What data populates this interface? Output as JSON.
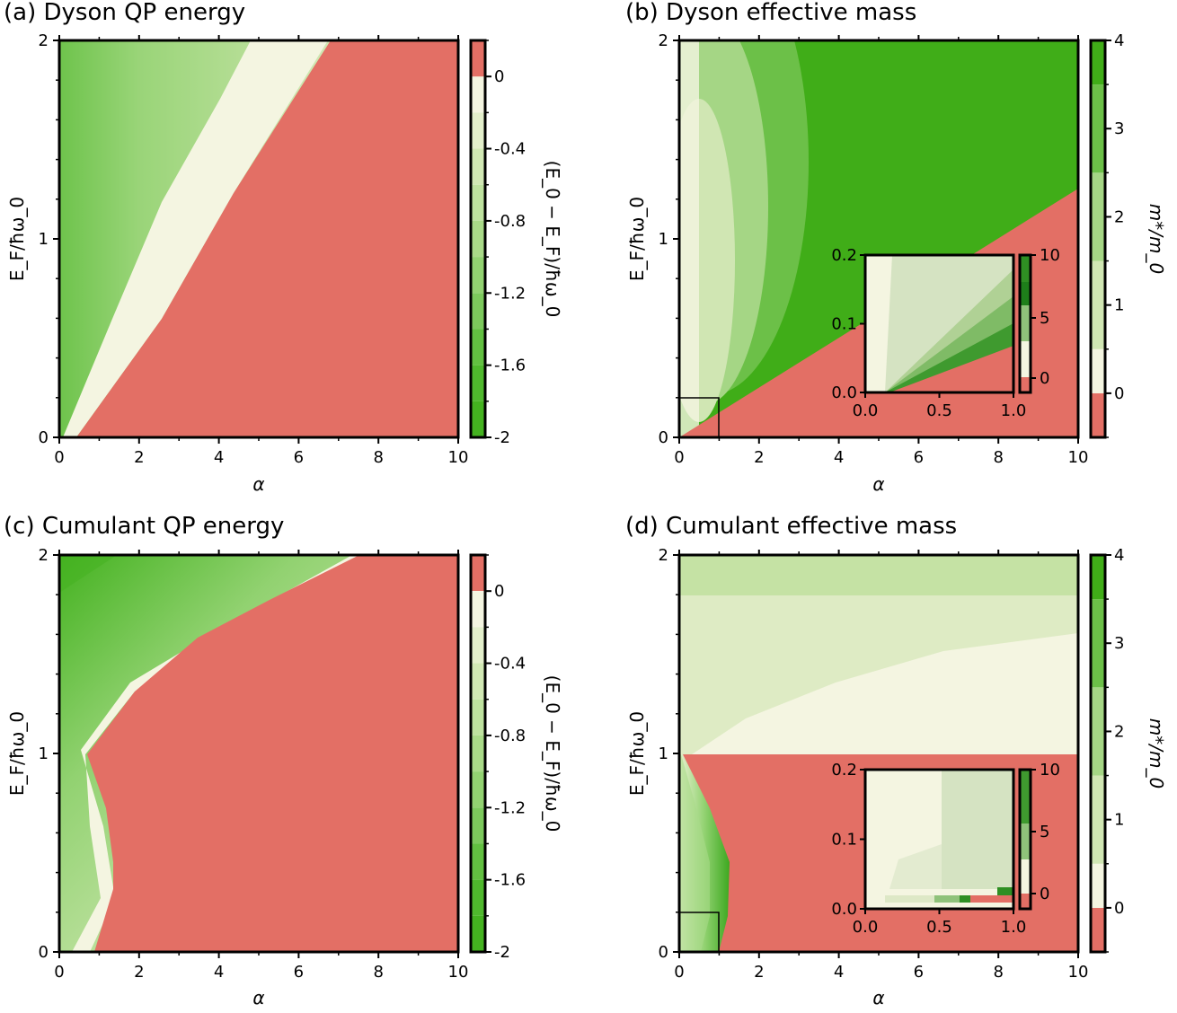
{
  "chart_data": [
    {
      "id": "a",
      "type": "heatmap",
      "title": "(a) Dyson QP energy",
      "xlabel": "α",
      "ylabel": "E_F/ħω_0",
      "xlim": [
        0,
        10
      ],
      "ylim": [
        0,
        2
      ],
      "x_ticks": [
        "0",
        "2",
        "4",
        "6",
        "8",
        "10"
      ],
      "y_ticks": [
        "0",
        "1",
        "2"
      ],
      "colorbar": {
        "label": "(E_0 − E_F)/ħω_0",
        "ticks": [
          "0",
          "-0.4",
          "-0.8",
          "-1.2",
          "-1.6",
          "-2"
        ],
        "range": [
          -2,
          0.2
        ],
        "positive_color": "#e36f65",
        "levels_from_zero": [
          "#f4f5e1",
          "#e3efcb",
          "#d1e8b4",
          "#bee29f",
          "#a9da88",
          "#92d271",
          "#7cc95c",
          "#62c041",
          "#4fb82d",
          "#44b220"
        ]
      },
      "regions": [
        {
          "name": "positive (red) region boundary, α at E_F/ħω_0",
          "E_F": [
            0,
            0.5,
            1.0,
            1.5,
            2.0
          ],
          "alpha": [
            0.3,
            2.3,
            3.9,
            5.4,
            6.8
          ]
        },
        {
          "name": "zero contour (pale band edge)",
          "E_F": [
            0,
            0.5,
            1.0,
            1.5,
            2.0
          ],
          "alpha": [
            0.1,
            1.4,
            2.5,
            3.6,
            4.8
          ]
        }
      ]
    },
    {
      "id": "b",
      "type": "heatmap",
      "title": "(b) Dyson effective mass",
      "xlabel": "α",
      "ylabel": "E_F/ħω_0",
      "xlim": [
        0,
        10
      ],
      "ylim": [
        0,
        2
      ],
      "x_ticks": [
        "0",
        "2",
        "4",
        "6",
        "8",
        "10"
      ],
      "y_ticks": [
        "0",
        "1",
        "2"
      ],
      "colorbar": {
        "label": "m*/m_0",
        "ticks": [
          "0",
          "1",
          "2",
          "3",
          "4"
        ],
        "range": [
          -0.5,
          4
        ],
        "negative_color": "#e36f65",
        "levels_from_zero": [
          "#f4f5e1",
          "#d0e6b3",
          "#a5d685",
          "#6cc048",
          "#40ad18"
        ]
      },
      "regions": [
        {
          "name": "negative mass boundary",
          "alpha": [
            0,
            10
          ],
          "E_F": [
            0,
            1.25
          ]
        }
      ],
      "inset": {
        "xlim": [
          0,
          1
        ],
        "ylim": [
          0,
          0.2
        ],
        "x_ticks": [
          "0.0",
          "0.5",
          "1.0"
        ],
        "y_ticks": [
          "0.0",
          "0.1",
          "0.2"
        ],
        "colorbar_ticks": [
          "0",
          "5",
          "10"
        ]
      }
    },
    {
      "id": "c",
      "type": "heatmap",
      "title": "(c) Cumulant QP energy",
      "xlabel": "α",
      "ylabel": "E_F/ħω_0",
      "xlim": [
        0,
        10
      ],
      "ylim": [
        0,
        2
      ],
      "x_ticks": [
        "0",
        "2",
        "4",
        "6",
        "8",
        "10"
      ],
      "y_ticks": [
        "0",
        "1",
        "2"
      ],
      "colorbar": {
        "label": "(E_0 − E_F)/ħω_0",
        "ticks": [
          "0",
          "-0.4",
          "-0.8",
          "-1.2",
          "-1.6",
          "-2"
        ],
        "range": [
          -2,
          0.2
        ],
        "positive_color": "#e36f65"
      },
      "regions": [
        {
          "name": "positive (red) region boundary",
          "E_F": [
            0,
            0.3,
            0.6,
            0.9,
            1.0,
            1.3,
            1.6,
            2.0
          ],
          "alpha": [
            0.7,
            1.35,
            1.3,
            1.0,
            0.8,
            2.3,
            4.3,
            7.9
          ]
        }
      ]
    },
    {
      "id": "d",
      "type": "heatmap",
      "title": "(d) Cumulant effective mass",
      "xlabel": "α",
      "ylabel": "E_F/ħω_0",
      "xlim": [
        0,
        10
      ],
      "ylim": [
        0,
        2
      ],
      "x_ticks": [
        "0",
        "2",
        "4",
        "6",
        "8",
        "10"
      ],
      "y_ticks": [
        "0",
        "1",
        "2"
      ],
      "colorbar": {
        "label": "m*/m_0",
        "ticks": [
          "0",
          "1",
          "2",
          "3",
          "4"
        ],
        "range": [
          -0.5,
          4
        ],
        "negative_color": "#e36f65"
      },
      "regions": [
        {
          "name": "negative mass region",
          "E_F": [
            0,
            1.0
          ],
          "alpha_min_boundary": [
            1.2,
            0.0
          ]
        }
      ],
      "inset": {
        "xlim": [
          0,
          1
        ],
        "ylim": [
          0,
          0.2
        ],
        "x_ticks": [
          "0.0",
          "0.5",
          "1.0"
        ],
        "y_ticks": [
          "0.0",
          "0.1",
          "0.2"
        ],
        "colorbar_ticks": [
          "0",
          "5",
          "10"
        ]
      }
    }
  ]
}
